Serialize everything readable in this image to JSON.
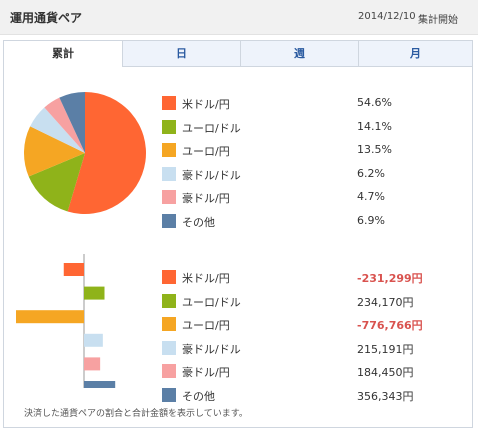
{
  "header": {
    "title": "運用通貨ペア",
    "date": "2014/12/10",
    "caption": "集計開始"
  },
  "tabs": [
    {
      "label": "累計",
      "active": true
    },
    {
      "label": "日",
      "active": false
    },
    {
      "label": "週",
      "active": false
    },
    {
      "label": "月",
      "active": false
    }
  ],
  "share_legend": [
    {
      "label": "米ドル/円",
      "value": "54.6%",
      "color": "#ff6633"
    },
    {
      "label": "ユーロ/ドル",
      "value": "14.1%",
      "color": "#8fb31a"
    },
    {
      "label": "ユーロ/円",
      "value": "13.5%",
      "color": "#f5a623"
    },
    {
      "label": "豪ドル/ドル",
      "value": "6.2%",
      "color": "#c8dff0"
    },
    {
      "label": "豪ドル/円",
      "value": "4.7%",
      "color": "#f7a1a1"
    },
    {
      "label": "その他",
      "value": "6.9%",
      "color": "#5b7fa6"
    }
  ],
  "amount_legend": [
    {
      "label": "米ドル/円",
      "value": "-231,299円",
      "negative": true,
      "color": "#ff6633"
    },
    {
      "label": "ユーロ/ドル",
      "value": "234,170円",
      "negative": false,
      "color": "#8fb31a"
    },
    {
      "label": "ユーロ/円",
      "value": "-776,766円",
      "negative": true,
      "color": "#f5a623"
    },
    {
      "label": "豪ドル/ドル",
      "value": "215,191円",
      "negative": false,
      "color": "#c8dff0"
    },
    {
      "label": "豪ドル/円",
      "value": "184,450円",
      "negative": false,
      "color": "#f7a1a1"
    },
    {
      "label": "その他",
      "value": "356,343円",
      "negative": false,
      "color": "#5b7fa6"
    }
  ],
  "footnote": "決済した通貨ペアの割合と合計金額を表示しています。",
  "chart_data": [
    {
      "type": "pie",
      "categories": [
        "米ドル/円",
        "ユーロ/ドル",
        "ユーロ/円",
        "豪ドル/ドル",
        "豪ドル/円",
        "その他"
      ],
      "values": [
        54.6,
        14.1,
        13.5,
        6.2,
        4.7,
        6.9
      ],
      "colors": [
        "#ff6633",
        "#8fb31a",
        "#f5a623",
        "#c8dff0",
        "#f7a1a1",
        "#5b7fa6"
      ]
    },
    {
      "type": "bar",
      "orientation": "horizontal",
      "categories": [
        "米ドル/円",
        "ユーロ/ドル",
        "ユーロ/円",
        "豪ドル/ドル",
        "豪ドル/円",
        "その他"
      ],
      "values": [
        -231299,
        234170,
        -776766,
        215191,
        184450,
        356343
      ],
      "colors": [
        "#ff6633",
        "#8fb31a",
        "#f5a623",
        "#c8dff0",
        "#f7a1a1",
        "#5b7fa6"
      ]
    }
  ]
}
